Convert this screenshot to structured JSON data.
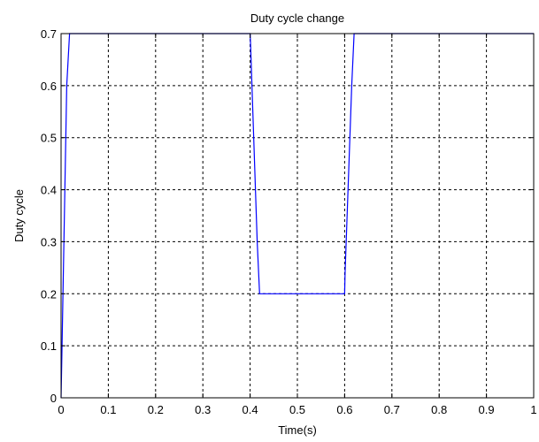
{
  "chart_data": {
    "type": "line",
    "title": "Duty cycle change",
    "xlabel": "Time(s)",
    "ylabel": "Duty cycle",
    "xlim": [
      0,
      1
    ],
    "ylim": [
      0,
      0.7
    ],
    "x_ticks": [
      "0",
      "0.1",
      "0.2",
      "0.3",
      "0.4",
      "0.5",
      "0.6",
      "0.7",
      "0.8",
      "0.9",
      "1"
    ],
    "y_ticks": [
      "0",
      "0.1",
      "0.2",
      "0.3",
      "0.4",
      "0.5",
      "0.6",
      "0.7"
    ],
    "grid": true,
    "grid_style": "dashed",
    "series": [
      {
        "color": "#0000ff",
        "x": [
          0,
          0.002,
          0.012,
          0.018,
          0.4,
          0.401,
          0.415,
          0.42,
          0.6,
          0.601,
          0.615,
          0.62,
          1
        ],
        "y": [
          0,
          0.1,
          0.6,
          0.7,
          0.7,
          0.68,
          0.3,
          0.2,
          0.2,
          0.24,
          0.6,
          0.7,
          0.7
        ]
      }
    ]
  }
}
